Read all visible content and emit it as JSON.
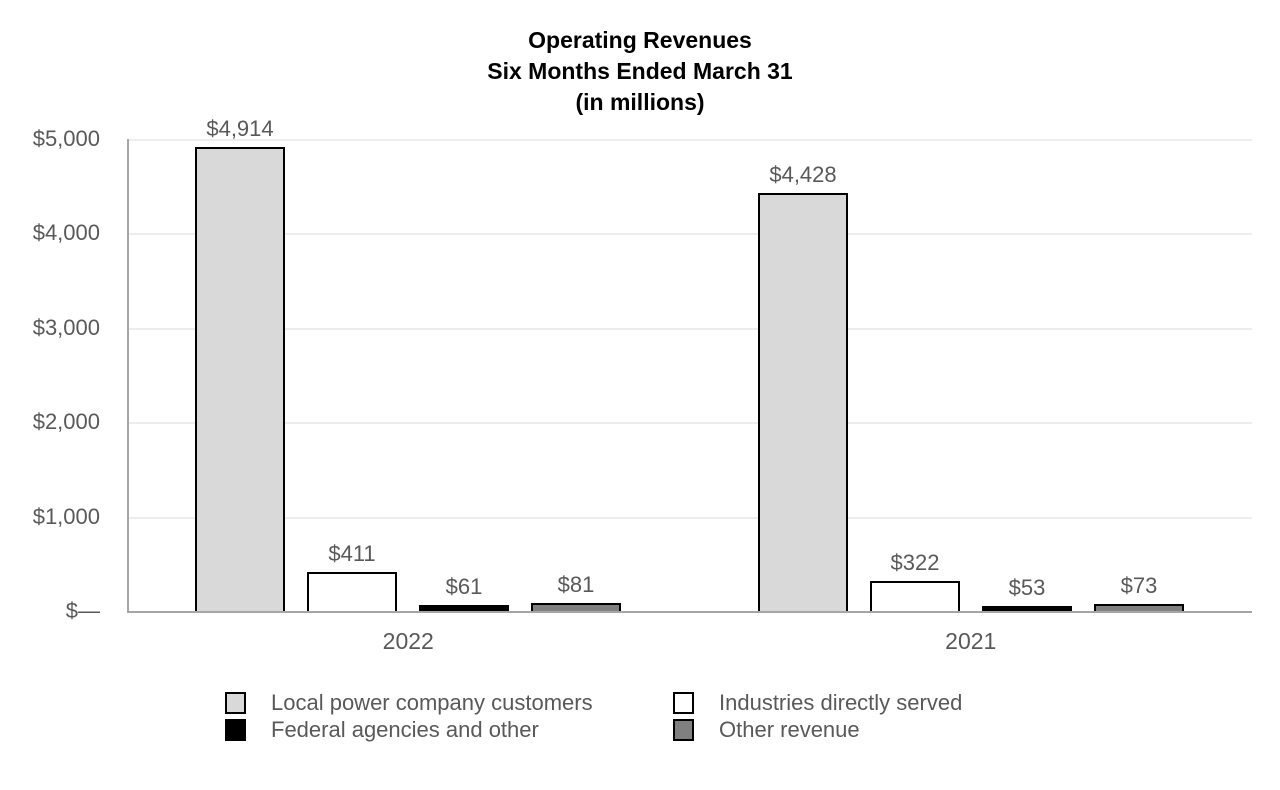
{
  "chart_data": {
    "type": "bar",
    "title_lines": [
      "Operating Revenues",
      "Six Months Ended March 31",
      "(in millions)"
    ],
    "categories": [
      "2022",
      "2021"
    ],
    "series": [
      {
        "name": "Local power company customers",
        "color": "#d9d9d9",
        "values": [
          4914,
          4428
        ],
        "value_labels": [
          "$4,914",
          "$4,428"
        ]
      },
      {
        "name": "Industries directly served",
        "color": "#ffffff",
        "values": [
          411,
          322
        ],
        "value_labels": [
          "$411",
          "$322"
        ]
      },
      {
        "name": "Federal agencies and other",
        "color": "#000000",
        "values": [
          61,
          53
        ],
        "value_labels": [
          "$61",
          "$53"
        ]
      },
      {
        "name": "Other revenue",
        "color": "#808080",
        "values": [
          81,
          73
        ],
        "value_labels": [
          "$81",
          "$73"
        ]
      }
    ],
    "y_axis": {
      "min": 0,
      "max": 5000,
      "ticks": [
        {
          "value": 0,
          "label": "$—"
        },
        {
          "value": 1000,
          "label": "$1,000"
        },
        {
          "value": 2000,
          "label": "$2,000"
        },
        {
          "value": 3000,
          "label": "$3,000"
        },
        {
          "value": 4000,
          "label": "$4,000"
        },
        {
          "value": 5000,
          "label": "$5,000"
        }
      ]
    },
    "grid": true,
    "legend_position": "bottom",
    "colors": {
      "axis": "#a6a6a6",
      "gridline": "#ededed",
      "label_text": "#595959",
      "bar_border": "#000000",
      "title_text": "#000000"
    }
  }
}
